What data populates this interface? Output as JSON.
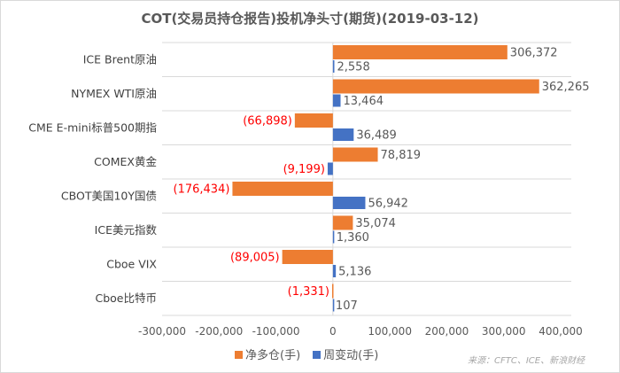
{
  "chart_data": {
    "type": "bar",
    "orientation": "horizontal",
    "title": "COT(交易员持仓报告)投机净头寸(期货)(2019-03-12)",
    "categories": [
      "ICE Brent原油",
      "NYMEX WTI原油",
      "CME E-mini标普500期指",
      "COMEX黄金",
      "CBOT美国10Y国债",
      "ICE美元指数",
      "Cboe VIX",
      "Cboe比特币"
    ],
    "series": [
      {
        "name": "净多仓(手)",
        "color": "#ed7d31",
        "values": [
          306372,
          362265,
          -66898,
          78819,
          -176434,
          35074,
          -89005,
          -1331
        ]
      },
      {
        "name": "周变动(手)",
        "color": "#4472c4",
        "values": [
          2558,
          13464,
          36489,
          -9199,
          56942,
          1360,
          5136,
          107
        ]
      }
    ],
    "xlim": [
      -300000,
      400000
    ],
    "xticks": [
      -300000,
      -200000,
      -100000,
      0,
      100000,
      200000,
      300000,
      400000
    ],
    "xtick_labels": [
      "-300,000",
      "-200,000",
      "-100,000",
      "0",
      "100,000",
      "200,000",
      "300,000",
      "400,000"
    ],
    "negative_label_color": "#ff0000",
    "legend_position": "bottom",
    "grid": "horizontal category separators",
    "source": "来源：CFTC、ICE、新浪财经"
  }
}
